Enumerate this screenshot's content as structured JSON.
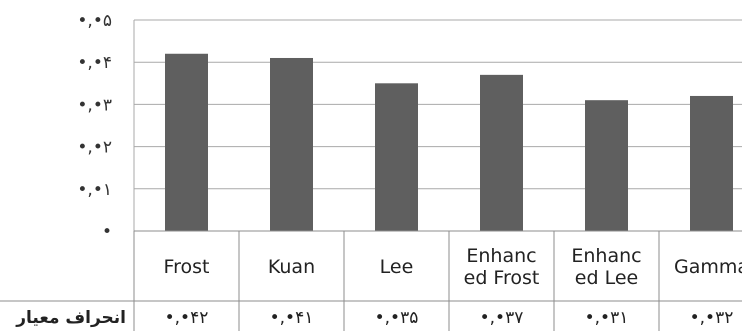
{
  "chart_data": {
    "type": "bar",
    "title": "",
    "xlabel": "",
    "ylabel": "",
    "ylim": [
      0,
      0.05
    ],
    "y_ticks": [
      0,
      0.01,
      0.02,
      0.03,
      0.04,
      0.05
    ],
    "y_tick_labels": [
      "•",
      "•,•١",
      "•,•٢",
      "•,•٣",
      "•,•۴",
      "•,•۵"
    ],
    "grid": true,
    "categories": [
      [
        "Frost"
      ],
      [
        "Kuan"
      ],
      [
        "Lee"
      ],
      [
        "Enhanc",
        "ed Frost"
      ],
      [
        "Enhanc",
        "ed Lee"
      ],
      [
        "Gamma"
      ]
    ],
    "series": [
      {
        "name": "انحراف معیار",
        "values": [
          0.042,
          0.041,
          0.035,
          0.037,
          0.031,
          0.032
        ],
        "value_labels": [
          "•,•۴٢",
          "•,•۴١",
          "•,•٣۵",
          "•,•٣٧",
          "•,•٣١",
          "•,•٣٢"
        ],
        "color": "#5f5f5f"
      }
    ],
    "gridline_color": "#a9a9a9",
    "table_line_color": "#8c8c8c"
  }
}
